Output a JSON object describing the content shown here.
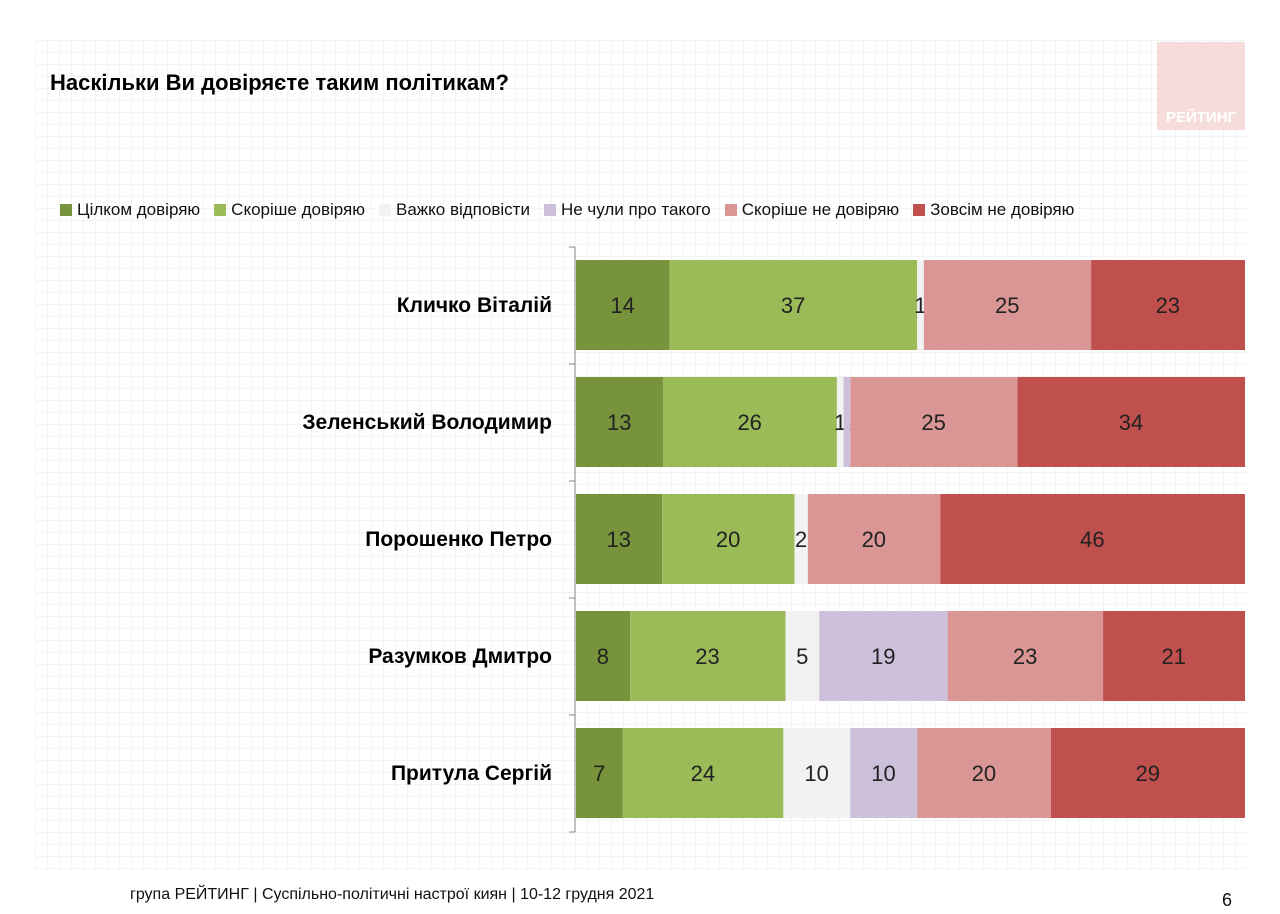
{
  "title": "Наскільки Ви довіряєте таким політикам?",
  "logo_text": "РЕЙТИНГ",
  "footer": "група РЕЙТИНГ | Суспільно-політичні настрої киян | 10-12 грудня 2021",
  "page_number": "6",
  "chart_data": {
    "type": "bar",
    "orientation": "horizontal",
    "stacked": true,
    "title": "Наскільки Ви довіряєте таким політикам?",
    "legend_position": "top",
    "xlim": [
      0,
      100
    ],
    "categories": [
      "Кличко Віталій",
      "Зеленський Володимир",
      "Порошенко Петро",
      "Разумков Дмитро",
      "Притула Сергій"
    ],
    "series": [
      {
        "name": "Цілком довіряю",
        "color": "#77933c",
        "values": [
          14,
          13,
          13,
          8,
          7
        ]
      },
      {
        "name": "Скоріше довіряю",
        "color": "#9bbb59",
        "values": [
          37,
          26,
          20,
          23,
          24
        ]
      },
      {
        "name": "Важко відповісти",
        "color": "#f2f2f2",
        "values": [
          1,
          1,
          2,
          5,
          10
        ]
      },
      {
        "name": "Не чули про такого",
        "color": "#ccc0da",
        "values": [
          0,
          1,
          0,
          19,
          10
        ]
      },
      {
        "name": "Скоріше не довіряю",
        "color": "#d99694",
        "values": [
          25,
          25,
          20,
          23,
          20
        ]
      },
      {
        "name": "Зовсім не довіряю",
        "color": "#c0504d",
        "values": [
          23,
          34,
          46,
          21,
          29
        ]
      }
    ]
  }
}
